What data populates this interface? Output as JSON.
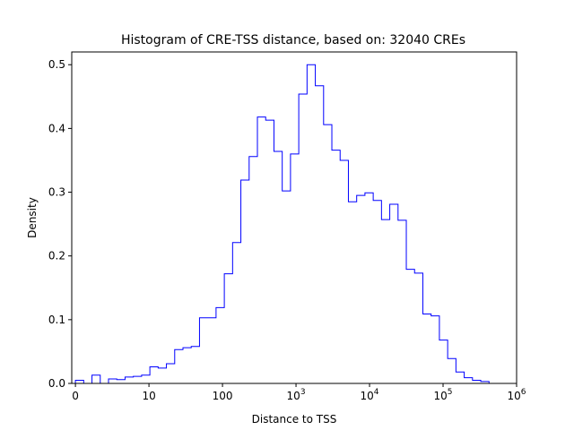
{
  "chart_data": {
    "type": "histogram-step",
    "title": "Histogram of CRE-TSS distance, based on: 32040 CREs",
    "xlabel": "Distance to TSS",
    "ylabel": "Density",
    "x_scale": "log1p",
    "xlim": [
      -0.05,
      6.0
    ],
    "ylim": [
      0,
      0.52
    ],
    "x_ticks": [
      {
        "value": 0,
        "label": "0",
        "sup": ""
      },
      {
        "value": 1,
        "label": "10",
        "sup": ""
      },
      {
        "value": 2,
        "label": "100",
        "sup": ""
      },
      {
        "value": 3,
        "label": "10",
        "sup": "3"
      },
      {
        "value": 4,
        "label": "10",
        "sup": "4"
      },
      {
        "value": 5,
        "label": "10",
        "sup": "5"
      },
      {
        "value": 6,
        "label": "10",
        "sup": "6"
      }
    ],
    "y_ticks": [
      {
        "value": 0.0,
        "label": "0.0"
      },
      {
        "value": 0.1,
        "label": "0.1"
      },
      {
        "value": 0.2,
        "label": "0.2"
      },
      {
        "value": 0.3,
        "label": "0.3"
      },
      {
        "value": 0.4,
        "label": "0.4"
      },
      {
        "value": 0.5,
        "label": "0.5"
      }
    ],
    "bin_width": 0.1125,
    "bin_start": 0,
    "densities": [
      0.005,
      0.0,
      0.013,
      0.0,
      0.007,
      0.006,
      0.01,
      0.011,
      0.013,
      0.026,
      0.024,
      0.031,
      0.053,
      0.056,
      0.058,
      0.103,
      0.103,
      0.119,
      0.172,
      0.221,
      0.319,
      0.356,
      0.418,
      0.413,
      0.364,
      0.302,
      0.36,
      0.454,
      0.5,
      0.467,
      0.406,
      0.366,
      0.35,
      0.285,
      0.295,
      0.299,
      0.287,
      0.257,
      0.281,
      0.256,
      0.179,
      0.173,
      0.109,
      0.106,
      0.068,
      0.039,
      0.018,
      0.009,
      0.005,
      0.003
    ],
    "line_color": "#0000ff",
    "grid": false
  }
}
